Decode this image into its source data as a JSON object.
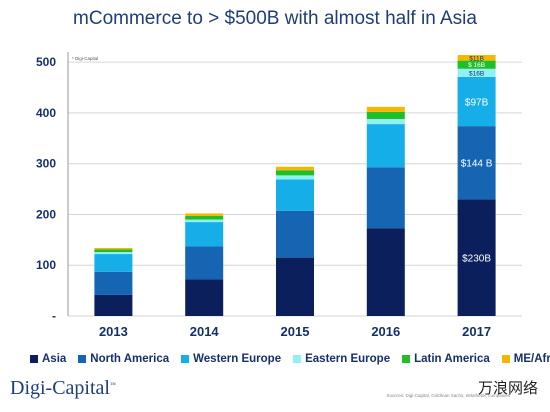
{
  "title": "mCommerce to  > $500B with almost half in Asia",
  "chart_data": {
    "type": "bar",
    "stacked": true,
    "categories": [
      "2013",
      "2014",
      "2015",
      "2016",
      "2017"
    ],
    "ylim": [
      0,
      520
    ],
    "yticks": [
      0,
      100,
      200,
      300,
      400,
      500
    ],
    "ytick_labels": [
      "-",
      "100",
      "200",
      "300",
      "400",
      "500"
    ],
    "series": [
      {
        "name": "Asia",
        "color": "#0a1f5c",
        "values": [
          42,
          72,
          115,
          173,
          230
        ]
      },
      {
        "name": "North America",
        "color": "#1565b3",
        "values": [
          45,
          65,
          92,
          120,
          144
        ]
      },
      {
        "name": "Western Europe",
        "color": "#16aee8",
        "values": [
          35,
          48,
          62,
          85,
          97
        ]
      },
      {
        "name": "Eastern Europe",
        "color": "#8ff0f5",
        "values": [
          4,
          5,
          8,
          10,
          16
        ]
      },
      {
        "name": "Latin America",
        "color": "#1fbf2a",
        "values": [
          5,
          7,
          10,
          14,
          16
        ]
      },
      {
        "name": "ME/Africa",
        "color": "#f5b800",
        "values": [
          3,
          5,
          7,
          10,
          11
        ]
      }
    ],
    "data_labels": [
      {
        "series": "Asia",
        "category": "2017",
        "text": "$230B"
      },
      {
        "series": "North America",
        "category": "2017",
        "text": "$144 B"
      },
      {
        "series": "Western Europe",
        "category": "2017",
        "text": "$97B"
      },
      {
        "series": "Eastern Europe",
        "category": "2017",
        "text": "$16B"
      },
      {
        "series": "Latin America",
        "category": "2017",
        "text": "$ 16B"
      },
      {
        "series": "ME/Africa",
        "category": "2017",
        "text": "$11B"
      }
    ],
    "annotation": "* Digi-Capital",
    "grid": true,
    "legend": "bottom"
  },
  "footer": {
    "brand": "Digi-Capital",
    "trademark": "™",
    "source": "Sources: Digi-Capital, Goldman Sachs, eMarketer, companies",
    "watermark": "万浪网络"
  }
}
